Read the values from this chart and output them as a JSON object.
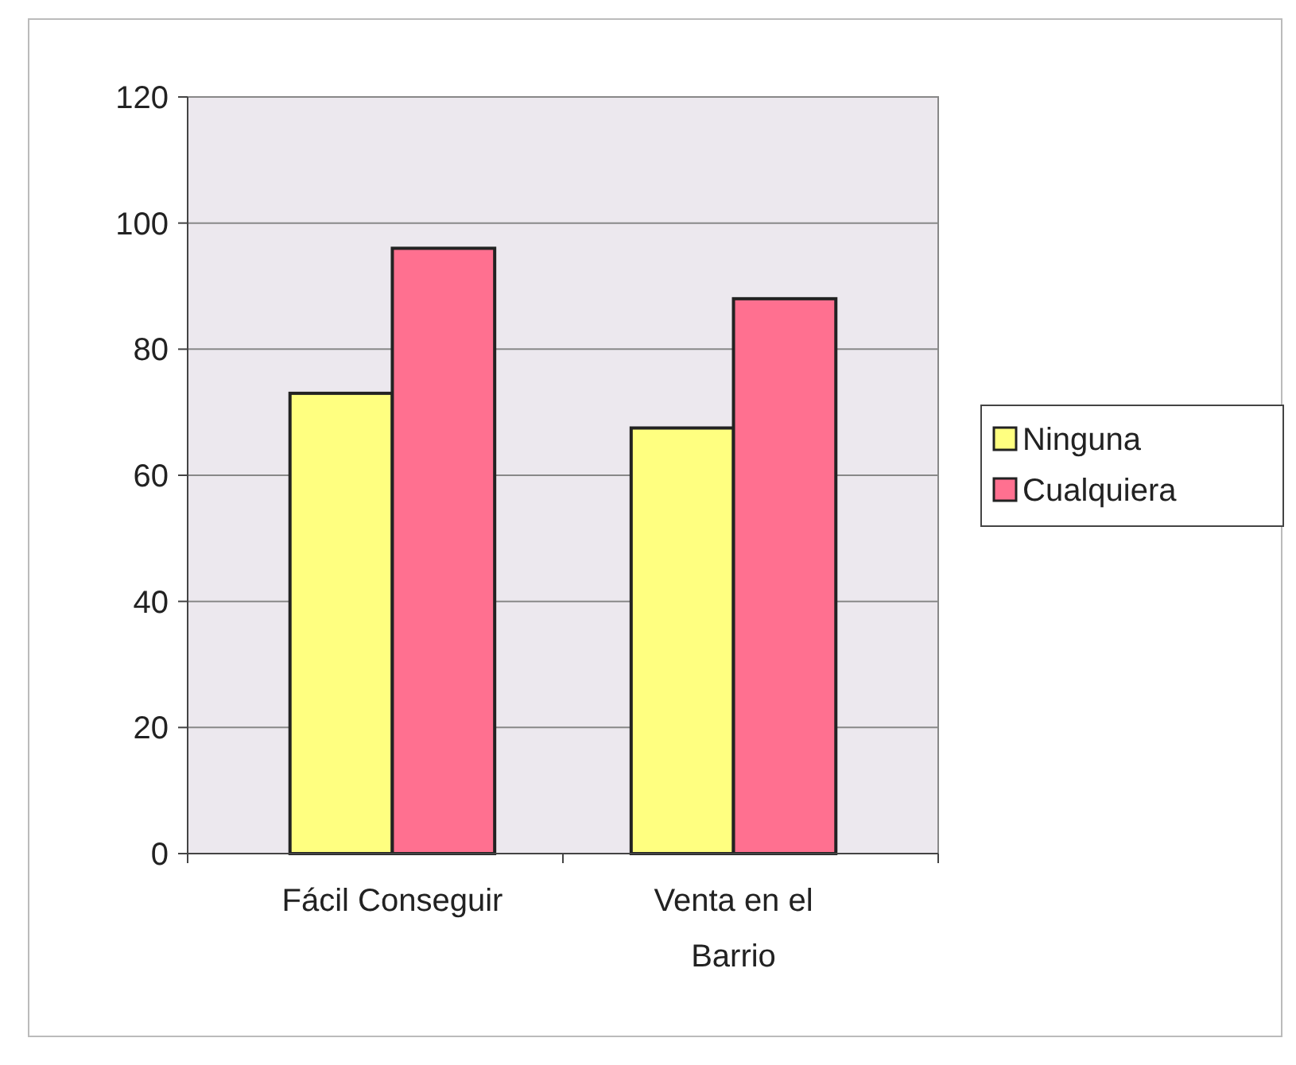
{
  "chart_data": {
    "type": "bar",
    "categories": [
      "Fácil Conseguir",
      "Venta en el Barrio"
    ],
    "series": [
      {
        "name": "Ninguna",
        "color": "#ffff80",
        "values": [
          73,
          67.5
        ]
      },
      {
        "name": "Cualquiera",
        "color": "#ff7090",
        "values": [
          96,
          88
        ]
      }
    ],
    "ylim": [
      0,
      120
    ],
    "yticks": [
      0,
      20,
      40,
      60,
      80,
      100,
      120
    ],
    "grid": "y",
    "legend": "right"
  }
}
